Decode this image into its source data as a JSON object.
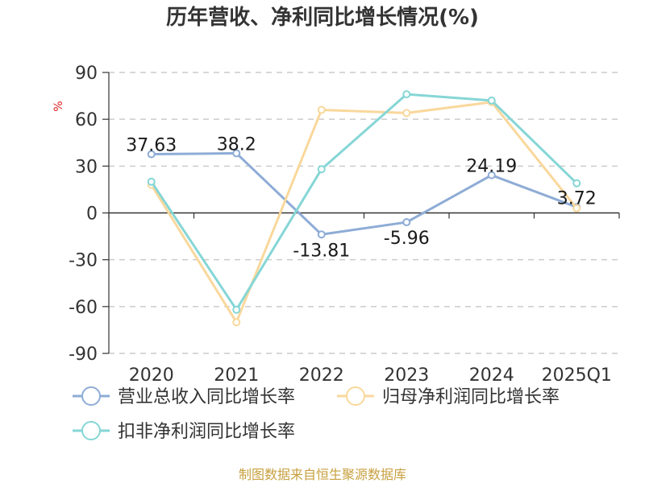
{
  "chart_data": {
    "type": "line",
    "title": "历年营收、净利同比增长情况(%)",
    "ylabel": "%",
    "categories": [
      "2020",
      "2021",
      "2022",
      "2023",
      "2024",
      "2025Q1"
    ],
    "ylim": [
      -90,
      90
    ],
    "yticks": [
      90,
      60,
      30,
      0,
      -30,
      -60,
      -90
    ],
    "grid": true,
    "legend_position": "bottom",
    "series": [
      {
        "name": "营业总收入同比增长率",
        "color": "#8eacd6",
        "values": [
          37.63,
          38.2,
          -13.81,
          -5.96,
          24.19,
          3.72
        ],
        "show_labels": true
      },
      {
        "name": "归母净利润同比增长率",
        "color": "#f9d89c",
        "values": [
          18,
          -70,
          66,
          64,
          71,
          3
        ],
        "show_labels": false
      },
      {
        "name": "扣非净利润同比增长率",
        "color": "#86d6d6",
        "values": [
          20,
          -62,
          28,
          76,
          72,
          19
        ],
        "show_labels": false
      }
    ],
    "data_labels": [
      "37.63",
      "38.2",
      "-13.81",
      "-5.96",
      "24.19",
      "3.72"
    ],
    "source": "制图数据来自恒生聚源数据库"
  }
}
